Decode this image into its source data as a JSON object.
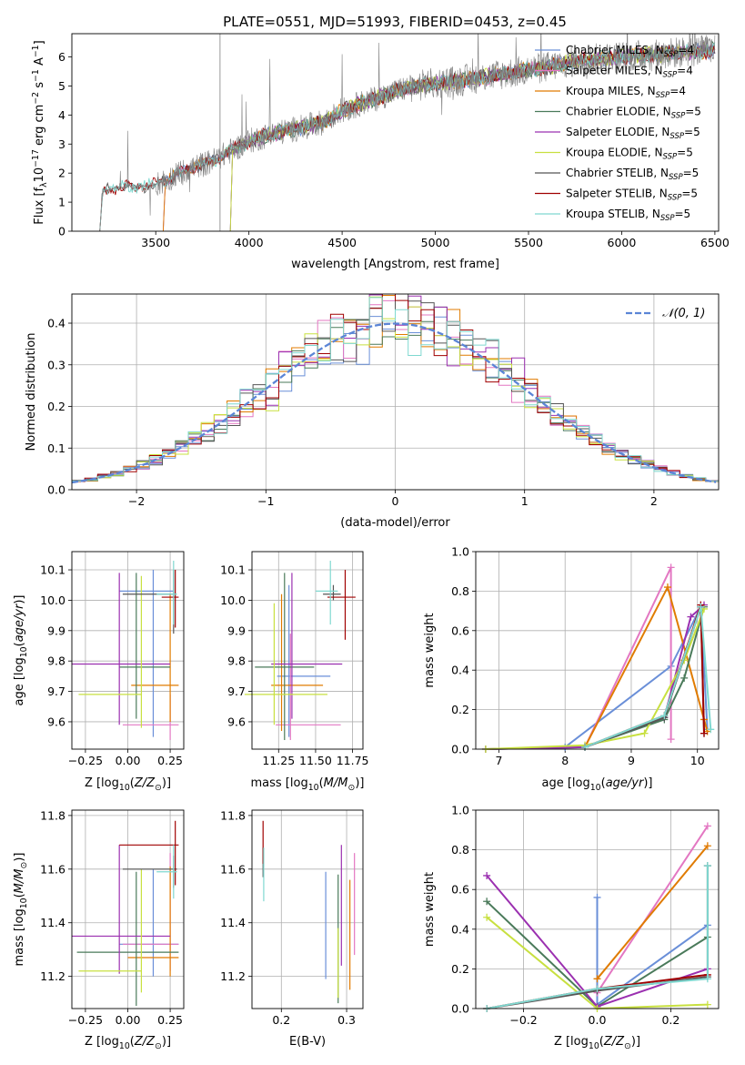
{
  "figure": {
    "title": "PLATE=0551, MJD=51993, FIBERID=0453, z=0.45"
  },
  "colors": {
    "s_chab_miles": "#6a8fd8",
    "s_salp_miles": "#e377c2",
    "s_krou_miles": "#e07b00",
    "s_chab_elodie": "#4a7a5a",
    "s_salp_elodie": "#9b30b0",
    "s_krou_elodie": "#c8e040",
    "s_chab_stelib": "#555555",
    "s_salp_stelib": "#a00000",
    "s_krou_stelib": "#7fd8d0",
    "data": "#808080",
    "normal": "#5b85d6",
    "grid": "#b0b0b0"
  },
  "chart_data": [
    {
      "id": "spectrum",
      "type": "line",
      "title": "PLATE=0551, MJD=51993, FIBERID=0453, z=0.45",
      "xlabel": "wavelength [Angstrom, rest frame]",
      "ylabel": "Flux [f_λ 10^-17 erg cm^-2 s^-1 A^-1]",
      "xlim": [
        3050,
        6520
      ],
      "ylim": [
        0,
        6.8
      ],
      "xticks": [
        3500,
        4000,
        4500,
        5000,
        5500,
        6000,
        6500
      ],
      "yticks": [
        0,
        1,
        2,
        3,
        4,
        5,
        6
      ],
      "grid": false,
      "legend": {
        "placement": "top-right",
        "entries": [
          {
            "label": "Chabrier MILES, N",
            "sub": "SSP",
            "tail": "=4",
            "color_key": "s_chab_miles"
          },
          {
            "label": "Salpeter MILES, N",
            "sub": "SSP",
            "tail": "=4",
            "color_key": "s_salp_miles"
          },
          {
            "label": "Kroupa MILES, N",
            "sub": "SSP",
            "tail": "=4",
            "color_key": "s_krou_miles"
          },
          {
            "label": "Chabrier ELODIE, N",
            "sub": "SSP",
            "tail": "=5",
            "color_key": "s_chab_elodie"
          },
          {
            "label": "Salpeter ELODIE, N",
            "sub": "SSP",
            "tail": "=5",
            "color_key": "s_salp_elodie"
          },
          {
            "label": "Kroupa ELODIE, N",
            "sub": "SSP",
            "tail": "=5",
            "color_key": "s_krou_elodie"
          },
          {
            "label": "Chabrier STELIB, N",
            "sub": "SSP",
            "tail": "=5",
            "color_key": "s_chab_stelib"
          },
          {
            "label": "Salpeter STELIB, N",
            "sub": "SSP",
            "tail": "=5",
            "color_key": "s_salp_stelib"
          },
          {
            "label": "Kroupa STELIB, N",
            "sub": "SSP",
            "tail": "=5",
            "color_key": "s_krou_stelib"
          }
        ]
      },
      "continuum": [
        [
          3200,
          0
        ],
        [
          3215,
          1.4
        ],
        [
          3300,
          1.5
        ],
        [
          3400,
          1.55
        ],
        [
          3500,
          1.6
        ],
        [
          3600,
          1.9
        ],
        [
          3700,
          2.2
        ],
        [
          3800,
          2.4
        ],
        [
          3900,
          2.75
        ],
        [
          4000,
          3.1
        ],
        [
          4100,
          3.3
        ],
        [
          4200,
          3.45
        ],
        [
          4300,
          3.6
        ],
        [
          4400,
          3.75
        ],
        [
          4500,
          4.15
        ],
        [
          4600,
          4.4
        ],
        [
          4700,
          4.6
        ],
        [
          4800,
          4.85
        ],
        [
          4900,
          5.0
        ],
        [
          5000,
          5.1
        ],
        [
          5100,
          5.15
        ],
        [
          5200,
          5.25
        ],
        [
          5300,
          5.35
        ],
        [
          5400,
          5.45
        ],
        [
          5500,
          5.55
        ],
        [
          5600,
          5.65
        ],
        [
          5700,
          5.8
        ],
        [
          5800,
          5.9
        ],
        [
          5900,
          5.95
        ],
        [
          6000,
          6.0
        ],
        [
          6100,
          6.05
        ],
        [
          6200,
          6.1
        ],
        [
          6300,
          6.15
        ],
        [
          6400,
          6.2
        ],
        [
          6500,
          6.25
        ]
      ],
      "model_starts": {
        "s_chab_miles": 3540,
        "s_salp_miles": 3540,
        "s_krou_miles": 3540,
        "s_chab_elodie": 3900,
        "s_salp_elodie": 3900,
        "s_krou_elodie": 3900,
        "s_chab_stelib": 3200,
        "s_salp_stelib": 3200,
        "s_krou_stelib": 3200
      }
    },
    {
      "id": "residuals",
      "type": "histogram",
      "xlabel": "(data-model)/error",
      "ylabel": "Normed distribution",
      "xlim": [
        -2.5,
        2.5
      ],
      "ylim": [
        0,
        0.47
      ],
      "xticks": [
        -2,
        -1,
        0,
        1,
        2
      ],
      "yticks": [
        0.0,
        0.1,
        0.2,
        0.3,
        0.4
      ],
      "grid": true,
      "legend": {
        "placement": "top-right",
        "label": "N(0,1)"
      },
      "bin_width": 0.1
    },
    {
      "id": "age_vs_Z",
      "type": "errorbar",
      "xlabel": "Z [log10(Z/Z⊙)]",
      "ylabel": "age [log10(age/yr)]",
      "xlim": [
        -0.33,
        0.33
      ],
      "ylim": [
        9.51,
        10.16
      ],
      "xticks": [
        -0.25,
        0.0,
        0.25
      ],
      "yticks": [
        9.6,
        9.7,
        9.8,
        9.9,
        10.0,
        10.1
      ],
      "grid": true,
      "points": [
        {
          "k": "s_chab_miles",
          "x": 0.15,
          "xerr": [
            0.2,
            0.12
          ],
          "y": 10.03,
          "yerr": [
            0.48,
            0.07
          ]
        },
        {
          "k": "s_salp_miles",
          "x": 0.25,
          "xerr": [
            0.28,
            0.05
          ],
          "y": 9.59,
          "yerr": [
            0.05,
            0.1
          ]
        },
        {
          "k": "s_krou_miles",
          "x": 0.25,
          "xerr": [
            0.23,
            0.05
          ],
          "y": 9.72,
          "yerr": [
            0.12,
            0.3
          ]
        },
        {
          "k": "s_chab_elodie",
          "x": 0.05,
          "xerr": [
            0.1,
            0.2
          ],
          "y": 9.78,
          "yerr": [
            0.17,
            0.31
          ]
        },
        {
          "k": "s_salp_elodie",
          "x": -0.05,
          "xerr": [
            0.28,
            0.3
          ],
          "y": 9.79,
          "yerr": [
            0.2,
            0.3
          ]
        },
        {
          "k": "s_krou_elodie",
          "x": 0.08,
          "xerr": [
            0.37,
            0.0
          ],
          "y": 9.69,
          "yerr": [
            0.11,
            0.39
          ]
        },
        {
          "k": "s_chab_stelib",
          "x": 0.27,
          "xerr": [
            0.3,
            0.0
          ],
          "y": 10.02,
          "yerr": [
            0.13,
            0.08
          ]
        },
        {
          "k": "s_salp_stelib",
          "x": 0.28,
          "xerr": [
            0.08,
            0.02
          ],
          "y": 10.01,
          "yerr": [
            0.1,
            0.09
          ]
        },
        {
          "k": "s_krou_stelib",
          "x": 0.27,
          "xerr": [
            0.1,
            0.02
          ],
          "y": 10.02,
          "yerr": [
            0.1,
            0.11
          ]
        }
      ]
    },
    {
      "id": "age_vs_mass",
      "type": "errorbar",
      "xlabel": "mass [log10(M/M⊙)]",
      "ylabel": "",
      "xlim": [
        11.07,
        11.82
      ],
      "ylim": [
        9.51,
        10.16
      ],
      "xticks": [
        11.25,
        11.5,
        11.75
      ],
      "yticks": [
        9.6,
        9.7,
        9.8,
        9.9,
        10.0,
        10.1
      ],
      "grid": true,
      "points": [
        {
          "k": "s_chab_miles",
          "x": 11.32,
          "xerr": [
            0.08,
            0.28
          ],
          "y": 9.75,
          "yerr": [
            0.2,
            0.3
          ]
        },
        {
          "k": "s_salp_miles",
          "x": 11.33,
          "xerr": [
            0.1,
            0.34
          ],
          "y": 9.59,
          "yerr": [
            0.05,
            0.3
          ]
        },
        {
          "k": "s_krou_miles",
          "x": 11.27,
          "xerr": [
            0.07,
            0.28
          ],
          "y": 9.72,
          "yerr": [
            0.15,
            0.3
          ]
        },
        {
          "k": "s_chab_elodie",
          "x": 11.29,
          "xerr": [
            0.2,
            0.2
          ],
          "y": 9.78,
          "yerr": [
            0.24,
            0.31
          ]
        },
        {
          "k": "s_salp_elodie",
          "x": 11.34,
          "xerr": [
            0.14,
            0.34
          ],
          "y": 9.79,
          "yerr": [
            0.18,
            0.3
          ]
        },
        {
          "k": "s_krou_elodie",
          "x": 11.22,
          "xerr": [
            0.2,
            0.36
          ],
          "y": 9.69,
          "yerr": [
            0.1,
            0.3
          ]
        },
        {
          "k": "s_chab_stelib",
          "x": 11.62,
          "xerr": [
            0.07,
            0.05
          ],
          "y": 10.02,
          "yerr": [
            0.02,
            0.03
          ]
        },
        {
          "k": "s_salp_stelib",
          "x": 11.7,
          "xerr": [
            0.12,
            0.07
          ],
          "y": 10.01,
          "yerr": [
            0.14,
            0.09
          ]
        },
        {
          "k": "s_krou_stelib",
          "x": 11.6,
          "xerr": [
            0.1,
            0.05
          ],
          "y": 10.03,
          "yerr": [
            0.11,
            0.1
          ]
        }
      ]
    },
    {
      "id": "weight_vs_age",
      "type": "line",
      "xlabel": "age [log10(age/yr)]",
      "ylabel": "mass weight",
      "xlim": [
        6.65,
        10.32
      ],
      "ylim": [
        0,
        1.0
      ],
      "xticks": [
        7,
        8,
        9,
        10
      ],
      "yticks": [
        0.0,
        0.2,
        0.4,
        0.6,
        0.8,
        1.0
      ],
      "grid": true,
      "series": [
        {
          "k": "s_chab_miles",
          "x": [
            8.0,
            9.6,
            10.05,
            10.15
          ],
          "y": [
            0.01,
            0.42,
            0.72,
            0.1
          ]
        },
        {
          "k": "s_salp_miles",
          "x": [
            8.3,
            9.6,
            9.6
          ],
          "y": [
            0.01,
            0.92,
            0.05
          ]
        },
        {
          "k": "s_krou_miles",
          "x": [
            8.3,
            9.55,
            10.1,
            10.15
          ],
          "y": [
            0.01,
            0.82,
            0.15,
            0.09
          ]
        },
        {
          "k": "s_chab_elodie",
          "x": [
            6.8,
            8.3,
            9.5,
            9.8,
            10.1
          ],
          "y": [
            0.0,
            0.01,
            0.15,
            0.36,
            0.72
          ]
        },
        {
          "k": "s_salp_elodie",
          "x": [
            6.8,
            8.3,
            9.5,
            9.9,
            10.1
          ],
          "y": [
            0.0,
            0.01,
            0.16,
            0.67,
            0.73
          ]
        },
        {
          "k": "s_krou_elodie",
          "x": [
            6.8,
            8.3,
            9.2,
            9.8,
            10.1
          ],
          "y": [
            0.0,
            0.02,
            0.08,
            0.45,
            0.71
          ]
        },
        {
          "k": "s_chab_stelib",
          "x": [
            8.3,
            9.5,
            10.05,
            10.1
          ],
          "y": [
            0.01,
            0.16,
            0.72,
            0.08
          ]
        },
        {
          "k": "s_salp_stelib",
          "x": [
            8.3,
            9.5,
            10.05,
            10.1
          ],
          "y": [
            0.01,
            0.17,
            0.73,
            0.08
          ]
        },
        {
          "k": "s_krou_stelib",
          "x": [
            8.3,
            9.5,
            10.05,
            10.2
          ],
          "y": [
            0.01,
            0.17,
            0.72,
            0.1
          ]
        }
      ]
    },
    {
      "id": "mass_vs_Z",
      "type": "errorbar",
      "xlabel": "Z [log10(Z/Z⊙)]",
      "ylabel": "mass [log10(M/M⊙)]",
      "xlim": [
        -0.33,
        0.33
      ],
      "ylim": [
        11.08,
        11.82
      ],
      "xticks": [
        -0.25,
        0.0,
        0.25
      ],
      "yticks": [
        11.2,
        11.4,
        11.6,
        11.8
      ],
      "grid": true,
      "points": [
        {
          "k": "s_chab_miles",
          "x": 0.15,
          "xerr": [
            0.2,
            0.15
          ],
          "y": 11.32,
          "yerr": [
            0.12,
            0.28
          ]
        },
        {
          "k": "s_salp_miles",
          "x": 0.25,
          "xerr": [
            0.28,
            0.05
          ],
          "y": 11.32,
          "yerr": [
            0.1,
            0.34
          ]
        },
        {
          "k": "s_krou_miles",
          "x": 0.25,
          "xerr": [
            0.25,
            0.05
          ],
          "y": 11.27,
          "yerr": [
            0.07,
            0.34
          ]
        },
        {
          "k": "s_chab_elodie",
          "x": 0.05,
          "xerr": [
            0.35,
            0.25
          ],
          "y": 11.29,
          "yerr": [
            0.2,
            0.3
          ]
        },
        {
          "k": "s_salp_elodie",
          "x": -0.05,
          "xerr": [
            0.28,
            0.3
          ],
          "y": 11.35,
          "yerr": [
            0.14,
            0.34
          ]
        },
        {
          "k": "s_krou_elodie",
          "x": 0.08,
          "xerr": [
            0.37,
            0.0
          ],
          "y": 11.22,
          "yerr": [
            0.08,
            0.38
          ]
        },
        {
          "k": "s_chab_stelib",
          "x": 0.27,
          "xerr": [
            0.3,
            0.02
          ],
          "y": 11.6,
          "yerr": [
            0.07,
            0.05
          ]
        },
        {
          "k": "s_salp_stelib",
          "x": 0.28,
          "xerr": [
            0.33,
            0.02
          ],
          "y": 11.69,
          "yerr": [
            0.15,
            0.09
          ]
        },
        {
          "k": "s_krou_stelib",
          "x": 0.27,
          "xerr": [
            0.1,
            0.02
          ],
          "y": 11.59,
          "yerr": [
            0.1,
            0.1
          ]
        }
      ]
    },
    {
      "id": "mass_vs_ebv",
      "type": "errorbar",
      "xlabel": "E(B-V)",
      "ylabel": "",
      "xlim": [
        0.155,
        0.325
      ],
      "ylim": [
        11.08,
        11.82
      ],
      "xticks": [
        0.2,
        0.3
      ],
      "yticks": [
        11.2,
        11.4,
        11.6,
        11.8
      ],
      "grid": true,
      "points": [
        {
          "k": "s_chab_miles",
          "x": 0.268,
          "y": 11.39,
          "yerr": [
            0.2,
            0.2
          ]
        },
        {
          "k": "s_salp_miles",
          "x": 0.312,
          "y": 11.46,
          "yerr": [
            0.18,
            0.2
          ]
        },
        {
          "k": "s_krou_miles",
          "x": 0.305,
          "y": 11.36,
          "yerr": [
            0.21,
            0.2
          ]
        },
        {
          "k": "s_chab_elodie",
          "x": 0.287,
          "y": 11.38,
          "yerr": [
            0.28,
            0.2
          ]
        },
        {
          "k": "s_salp_elodie",
          "x": 0.292,
          "y": 11.46,
          "yerr": [
            0.22,
            0.23
          ]
        },
        {
          "k": "s_krou_elodie",
          "x": 0.287,
          "y": 11.28,
          "yerr": [
            0.16,
            0.1
          ]
        },
        {
          "k": "s_chab_stelib",
          "x": 0.172,
          "y": 11.63,
          "yerr": [
            0.06,
            0.05
          ]
        },
        {
          "k": "s_salp_stelib",
          "x": 0.172,
          "y": 11.7,
          "yerr": [
            0.08,
            0.08
          ]
        },
        {
          "k": "s_krou_stelib",
          "x": 0.173,
          "y": 11.58,
          "yerr": [
            0.1,
            0.1
          ]
        }
      ]
    },
    {
      "id": "weight_vs_Z",
      "type": "line",
      "xlabel": "Z [log10(Z/Z⊙)]",
      "ylabel": "mass weight",
      "xlim": [
        -0.33,
        0.33
      ],
      "ylim": [
        0,
        1.0
      ],
      "xticks": [
        -0.2,
        0.0,
        0.2
      ],
      "yticks": [
        0.0,
        0.2,
        0.4,
        0.6,
        0.8,
        1.0
      ],
      "grid": true,
      "series": [
        {
          "k": "s_chab_miles",
          "x": [
            0.0,
            0.0,
            0.3
          ],
          "y": [
            0.56,
            0.02,
            0.42
          ]
        },
        {
          "k": "s_salp_miles",
          "x": [
            0.0,
            0.3
          ],
          "y": [
            0.08,
            0.92
          ]
        },
        {
          "k": "s_krou_miles",
          "x": [
            0.0,
            0.3
          ],
          "y": [
            0.15,
            0.82
          ]
        },
        {
          "k": "s_chab_elodie",
          "x": [
            -0.3,
            0.0,
            0.3
          ],
          "y": [
            0.54,
            0.01,
            0.36
          ]
        },
        {
          "k": "s_salp_elodie",
          "x": [
            -0.3,
            0.0,
            0.3
          ],
          "y": [
            0.67,
            0.01,
            0.2
          ]
        },
        {
          "k": "s_krou_elodie",
          "x": [
            -0.3,
            0.0,
            0.3
          ],
          "y": [
            0.46,
            0.0,
            0.02
          ]
        },
        {
          "k": "s_chab_stelib",
          "x": [
            -0.3,
            0.0,
            0.3,
            0.3
          ],
          "y": [
            0.0,
            0.09,
            0.16,
            0.72
          ]
        },
        {
          "k": "s_salp_stelib",
          "x": [
            -0.3,
            0.0,
            0.3
          ],
          "y": [
            0.0,
            0.1,
            0.17
          ]
        },
        {
          "k": "s_krou_stelib",
          "x": [
            -0.3,
            0.0,
            0.3,
            0.3
          ],
          "y": [
            0.0,
            0.1,
            0.15,
            0.72
          ]
        }
      ]
    }
  ]
}
